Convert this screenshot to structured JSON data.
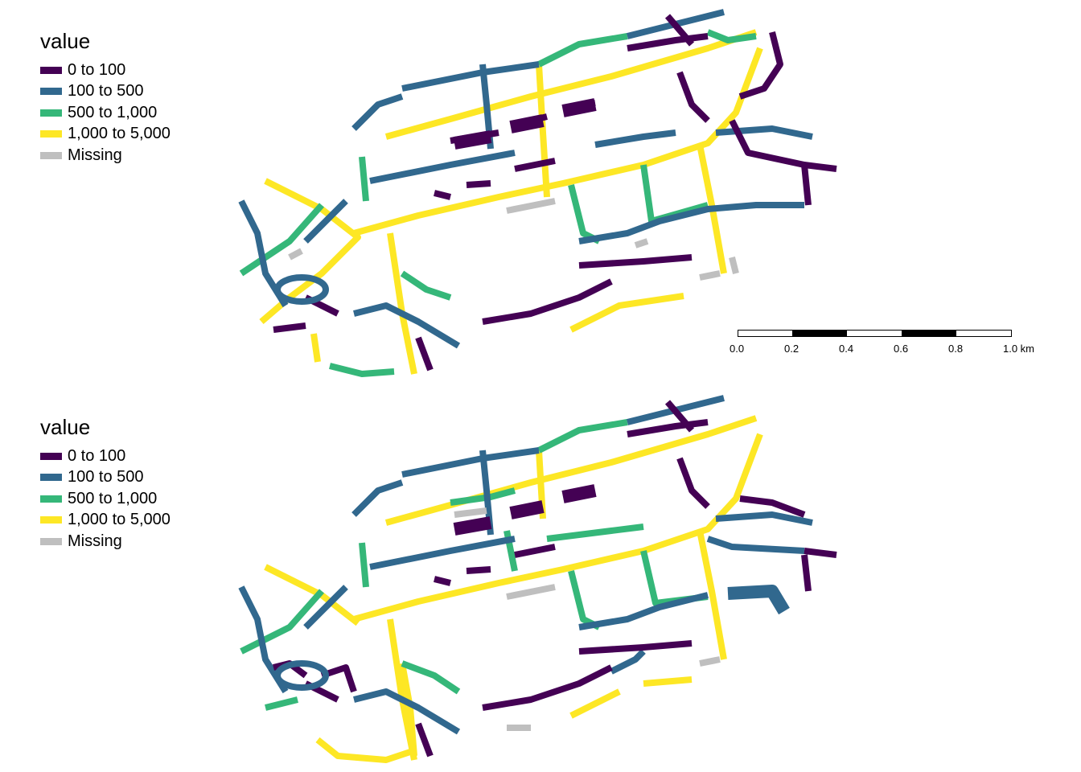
{
  "legend": {
    "title": "value",
    "items": [
      {
        "label": "0 to 100",
        "color": "#440154"
      },
      {
        "label": "100 to 500",
        "color": "#31688e"
      },
      {
        "label": "500 to 1,000",
        "color": "#35b779"
      },
      {
        "label": "1,000 to 5,000",
        "color": "#fde725"
      },
      {
        "label": "Missing",
        "color": "#bfbfbf"
      }
    ]
  },
  "scale_bar": {
    "labels": [
      "0.0",
      "0.2",
      "0.4",
      "0.6",
      "0.8",
      "1.0 km"
    ]
  },
  "panels": [
    {
      "name": "top"
    },
    {
      "name": "bottom"
    }
  ]
}
